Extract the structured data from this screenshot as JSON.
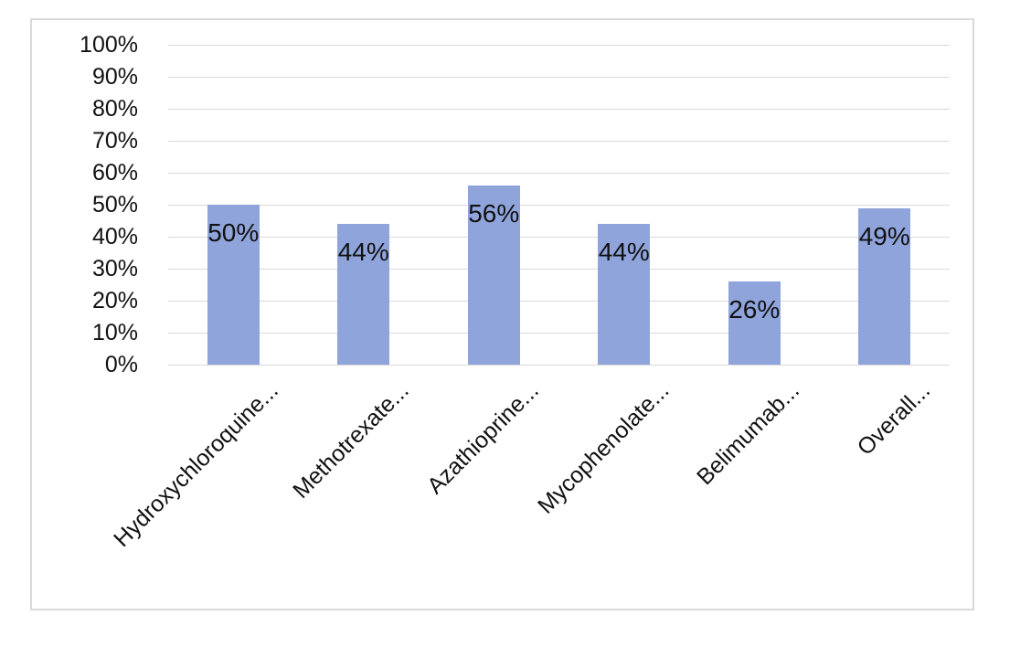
{
  "chart_data": {
    "type": "bar",
    "title": "",
    "xlabel": "",
    "ylabel": "",
    "categories": [
      "Hydroxychloroquine...",
      "Methotrexate...",
      "Azathioprine...",
      "Mycophenolate...",
      "Belimumab...",
      "Overall..."
    ],
    "values": [
      50,
      44,
      56,
      44,
      26,
      49
    ],
    "data_labels": [
      "50%",
      "44%",
      "56%",
      "44%",
      "26%",
      "49%"
    ],
    "y_ticks": [
      "100%",
      "90%",
      "80%",
      "70%",
      "60%",
      "50%",
      "40%",
      "30%",
      "20%",
      "10%",
      "0%"
    ],
    "ylim": [
      0,
      100
    ],
    "grid": true,
    "legend": "none",
    "colors": {
      "bar_fill": "#8fa4db",
      "gridline": "#d9d9d9",
      "frame_border": "#d9d9d9",
      "text": "#111111",
      "background": "#ffffff"
    }
  }
}
